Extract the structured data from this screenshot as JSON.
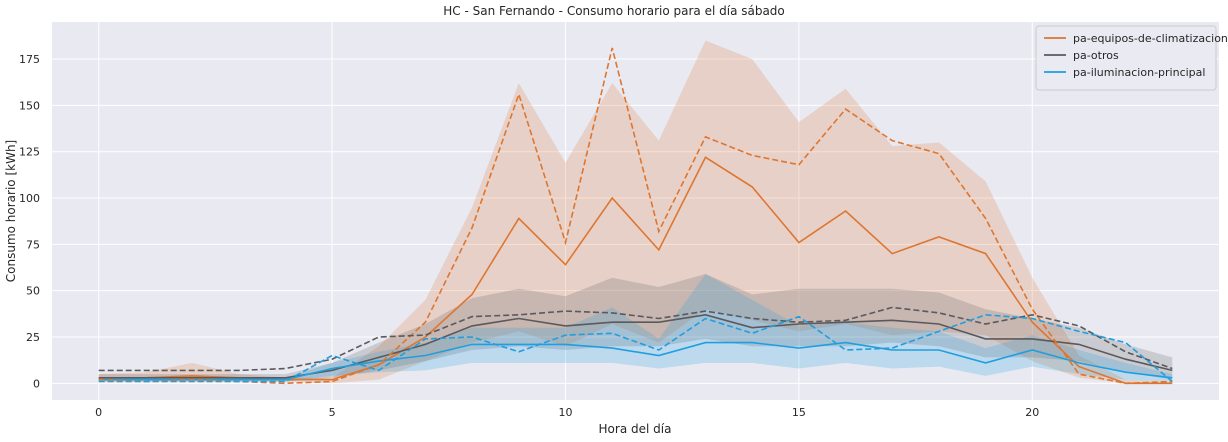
{
  "chart_data": {
    "type": "line",
    "title": "HC - San Fernando - Consumo horario para el día sábado",
    "xlabel": "Hora del día",
    "ylabel": "Consumo horario [kWh]",
    "xlim": [
      -1,
      24
    ],
    "ylim": [
      -9,
      195
    ],
    "xticks": [
      0,
      5,
      10,
      15,
      20
    ],
    "yticks": [
      0,
      25,
      50,
      75,
      100,
      125,
      150,
      175
    ],
    "grid": true,
    "legend_position": "top-right",
    "x": [
      0,
      1,
      2,
      3,
      4,
      5,
      6,
      7,
      8,
      9,
      10,
      11,
      12,
      13,
      14,
      15,
      16,
      17,
      18,
      19,
      20,
      21,
      22,
      23
    ],
    "series": [
      {
        "name": "pa-equipos-de-climatizacion",
        "color": "#dd7631",
        "mean": [
          3,
          3,
          4,
          3,
          2,
          2,
          10,
          25,
          48,
          89,
          64,
          100,
          72,
          122,
          106,
          76,
          93,
          70,
          79,
          70,
          33,
          9,
          0,
          0
        ],
        "dashed": [
          2,
          1,
          2,
          1,
          0,
          1,
          10,
          33,
          84,
          156,
          76,
          181,
          82,
          133,
          123,
          118,
          148,
          131,
          124,
          89,
          40,
          5,
          0,
          1
        ],
        "band_low": [
          1,
          1,
          1,
          1,
          1,
          0,
          2,
          12,
          22,
          28,
          20,
          32,
          22,
          40,
          34,
          28,
          32,
          26,
          28,
          26,
          12,
          3,
          0,
          0
        ],
        "band_high": [
          5,
          6,
          11,
          5,
          3,
          3,
          20,
          45,
          95,
          162,
          119,
          162,
          131,
          185,
          175,
          141,
          159,
          128,
          130,
          109,
          57,
          15,
          2,
          1
        ]
      },
      {
        "name": "pa-otros",
        "color": "#5a5a5e",
        "mean": [
          3,
          3,
          3,
          3,
          3,
          7,
          14,
          21,
          31,
          35,
          31,
          33,
          33,
          37,
          30,
          32,
          33,
          34,
          32,
          24,
          24,
          21,
          13,
          7
        ],
        "dashed": [
          7,
          7,
          7,
          7,
          8,
          13,
          25,
          26,
          36,
          37,
          39,
          38,
          35,
          39,
          35,
          33,
          34,
          41,
          38,
          32,
          37,
          31,
          17,
          8
        ],
        "band_low": [
          1,
          1,
          1,
          1,
          1,
          3,
          7,
          12,
          18,
          20,
          18,
          20,
          20,
          24,
          20,
          20,
          20,
          22,
          20,
          14,
          14,
          12,
          6,
          2
        ],
        "band_high": [
          5,
          5,
          5,
          5,
          5,
          11,
          22,
          32,
          46,
          51,
          47,
          57,
          52,
          59,
          48,
          51,
          51,
          51,
          49,
          40,
          35,
          30,
          21,
          14
        ]
      },
      {
        "name": "pa-iluminacion-principal",
        "color": "#1f9fdf",
        "mean": [
          2,
          2,
          2,
          2,
          2,
          8,
          12,
          15,
          21,
          21,
          21,
          19,
          15,
          22,
          22,
          19,
          22,
          18,
          18,
          11,
          18,
          11,
          6,
          3
        ],
        "dashed": [
          1,
          1,
          1,
          1,
          1,
          15,
          7,
          24,
          25,
          17,
          26,
          27,
          18,
          35,
          27,
          36,
          18,
          19,
          28,
          37,
          35,
          28,
          22,
          1
        ],
        "band_low": [
          1,
          1,
          1,
          1,
          1,
          4,
          6,
          7,
          11,
          11,
          11,
          11,
          8,
          11,
          11,
          8,
          11,
          8,
          9,
          4,
          9,
          5,
          2,
          1
        ],
        "band_high": [
          3,
          3,
          3,
          3,
          3,
          11,
          17,
          22,
          30,
          30,
          30,
          41,
          24,
          59,
          45,
          31,
          33,
          30,
          28,
          19,
          26,
          18,
          11,
          5
        ]
      }
    ]
  }
}
